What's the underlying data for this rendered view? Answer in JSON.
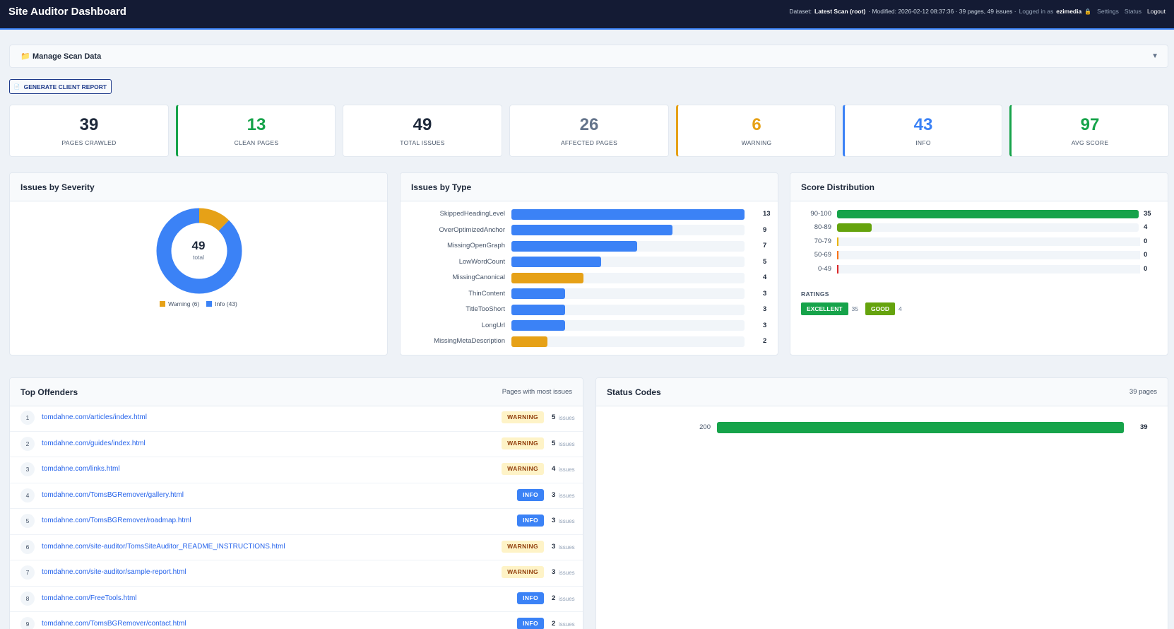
{
  "header": {
    "title": "Site Auditor Dashboard",
    "dataset_label": "Dataset:",
    "dataset": "Latest Scan (root)",
    "meta": "· Modified: 2026-02-12 08:37:36 · 39 pages, 49 issues ·",
    "logged_label": "Logged in as",
    "user": "ezimedia",
    "lock": "🔒",
    "links": [
      "Settings",
      "Status",
      "Logout"
    ]
  },
  "manage": {
    "icon": "📁",
    "title": "Manage Scan Data",
    "toggle": "▼"
  },
  "report_button": {
    "icon": "📄",
    "label": "GENERATE CLIENT REPORT"
  },
  "stats": [
    {
      "value": 39,
      "label": "PAGES CRAWLED",
      "color": "#1e293b"
    },
    {
      "value": 13,
      "label": "CLEAN PAGES",
      "color": "#16a34a",
      "accent": "#16a34a"
    },
    {
      "value": 49,
      "label": "TOTAL ISSUES",
      "color": "#1e293b"
    },
    {
      "value": 26,
      "label": "AFFECTED PAGES",
      "color": "#64748b"
    },
    {
      "value": 6,
      "label": "WARNING",
      "color": "#e6a117",
      "accent": "#e6a117"
    },
    {
      "value": 43,
      "label": "INFO",
      "color": "#3b82f6",
      "accent": "#3b82f6"
    },
    {
      "value": 97,
      "label": "AVG SCORE",
      "color": "#16a34a",
      "accent": "#16a34a"
    }
  ],
  "severity": {
    "title": "Issues by Severity",
    "total": 49,
    "total_label": "total",
    "series": [
      {
        "name": "Warning (6)",
        "value": 6,
        "color": "#e6a117"
      },
      {
        "name": "Info (43)",
        "value": 43,
        "color": "#3b82f6"
      }
    ]
  },
  "issue_types": {
    "title": "Issues by Type",
    "items": [
      {
        "name": "SkippedHeadingLevel",
        "value": 13,
        "color": "#3b82f6"
      },
      {
        "name": "OverOptimizedAnchor",
        "value": 9,
        "color": "#3b82f6"
      },
      {
        "name": "MissingOpenGraph",
        "value": 7,
        "color": "#3b82f6"
      },
      {
        "name": "LowWordCount",
        "value": 5,
        "color": "#3b82f6"
      },
      {
        "name": "MissingCanonical",
        "value": 4,
        "color": "#e6a117"
      },
      {
        "name": "ThinContent",
        "value": 3,
        "color": "#3b82f6"
      },
      {
        "name": "TitleTooShort",
        "value": 3,
        "color": "#3b82f6"
      },
      {
        "name": "LongUrl",
        "value": 3,
        "color": "#3b82f6"
      },
      {
        "name": "MissingMetaDescription",
        "value": 2,
        "color": "#e6a117"
      }
    ]
  },
  "score_distribution": {
    "title": "Score Distribution",
    "items": [
      {
        "range": "90-100",
        "value": 35,
        "color": "#16a34a"
      },
      {
        "range": "80-89",
        "value": 4,
        "color": "#65a30d"
      },
      {
        "range": "70-79",
        "value": 0,
        "color": "#eab308"
      },
      {
        "range": "50-69",
        "value": 0,
        "color": "#f97316"
      },
      {
        "range": "0-49",
        "value": 0,
        "color": "#dc2626"
      }
    ],
    "ratings_title": "RATINGS",
    "ratings": [
      {
        "label": "EXCELLENT",
        "count": 35,
        "color": "#16a34a"
      },
      {
        "label": "GOOD",
        "count": 4,
        "color": "#65a30d"
      }
    ]
  },
  "top_offenders": {
    "title": "Top Offenders",
    "subtitle": "Pages with most issues",
    "unit": "issues",
    "rows": [
      {
        "rank": 1,
        "url": "tomdahne.com/articles/index.html",
        "severity": "WARNING",
        "count": 5,
        "badge_color": "#fef3c7",
        "badge_text_color": "#92400e"
      },
      {
        "rank": 2,
        "url": "tomdahne.com/guides/index.html",
        "severity": "WARNING",
        "count": 5,
        "badge_color": "#fef3c7",
        "badge_text_color": "#92400e"
      },
      {
        "rank": 3,
        "url": "tomdahne.com/links.html",
        "severity": "WARNING",
        "count": 4,
        "badge_color": "#fef3c7",
        "badge_text_color": "#92400e"
      },
      {
        "rank": 4,
        "url": "tomdahne.com/TomsBGRemover/gallery.html",
        "severity": "INFO",
        "count": 3,
        "badge_color": "#3b82f6",
        "badge_text_color": "#ffffff"
      },
      {
        "rank": 5,
        "url": "tomdahne.com/TomsBGRemover/roadmap.html",
        "severity": "INFO",
        "count": 3,
        "badge_color": "#3b82f6",
        "badge_text_color": "#ffffff"
      },
      {
        "rank": 6,
        "url": "tomdahne.com/site-auditor/TomsSiteAuditor_README_INSTRUCTIONS.html",
        "severity": "WARNING",
        "count": 3,
        "badge_color": "#fef3c7",
        "badge_text_color": "#92400e"
      },
      {
        "rank": 7,
        "url": "tomdahne.com/site-auditor/sample-report.html",
        "severity": "WARNING",
        "count": 3,
        "badge_color": "#fef3c7",
        "badge_text_color": "#92400e"
      },
      {
        "rank": 8,
        "url": "tomdahne.com/FreeTools.html",
        "severity": "INFO",
        "count": 2,
        "badge_color": "#3b82f6",
        "badge_text_color": "#ffffff"
      },
      {
        "rank": 9,
        "url": "tomdahne.com/TomsBGRemover/contact.html",
        "severity": "INFO",
        "count": 2,
        "badge_color": "#3b82f6",
        "badge_text_color": "#ffffff"
      }
    ]
  },
  "status_codes": {
    "title": "Status Codes",
    "subtitle": "39 pages",
    "items": [
      {
        "code": 200,
        "count": 39,
        "color": "#16a34a"
      }
    ]
  }
}
